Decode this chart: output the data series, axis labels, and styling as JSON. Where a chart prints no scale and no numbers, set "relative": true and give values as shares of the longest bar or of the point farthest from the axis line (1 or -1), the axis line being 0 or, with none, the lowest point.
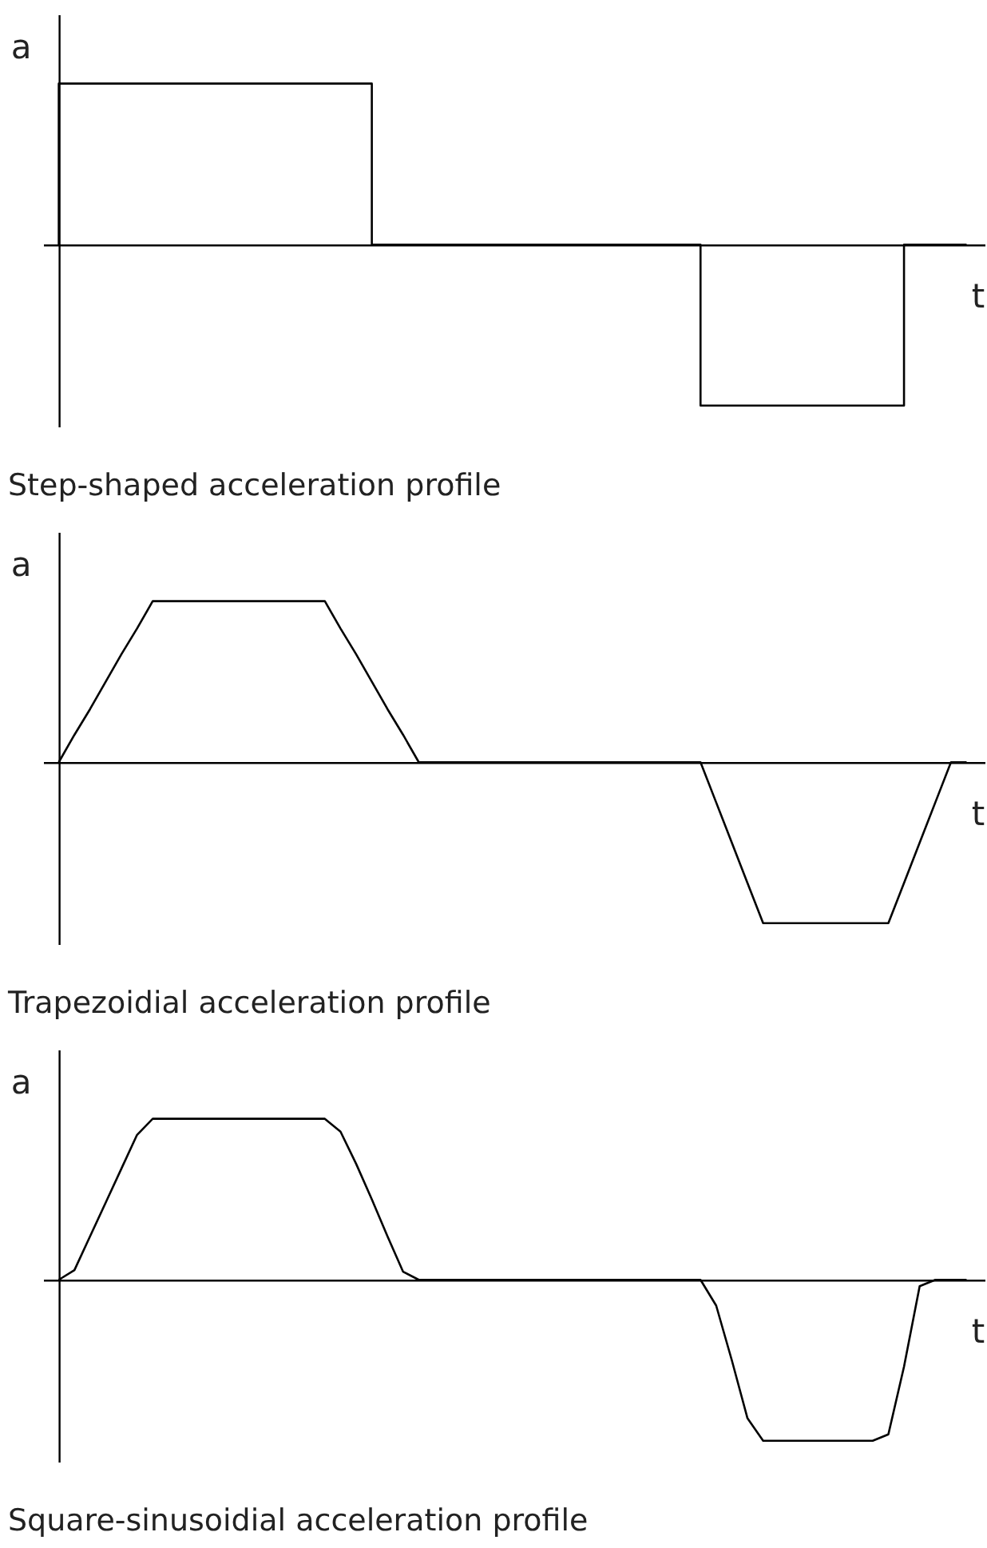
{
  "chart_data": [
    {
      "type": "step",
      "xlabel": "t",
      "ylabel": "a",
      "annotations": [
        "Step-shaped acceleration profile"
      ],
      "relative": true,
      "line_style": "solid",
      "categories": [
        null,
        null,
        null,
        null,
        null,
        null,
        null,
        null,
        null,
        null,
        null,
        null,
        null,
        null,
        null,
        null,
        null,
        null,
        null,
        null,
        null,
        null,
        null,
        null,
        null,
        null,
        null,
        null,
        null,
        null,
        null,
        null,
        null,
        null,
        null,
        null,
        null,
        null,
        null,
        null,
        null,
        null,
        null,
        null,
        null,
        null,
        null,
        null,
        null,
        null,
        null,
        null,
        null,
        null,
        null,
        null,
        null,
        null,
        null
      ],
      "series": [
        {
          "color": "#000000",
          "values": [
            0,
            1,
            1,
            1,
            1,
            1,
            1,
            1,
            1,
            1,
            1,
            1,
            1,
            1,
            1,
            1,
            1,
            1,
            1,
            1,
            1,
            0,
            0,
            0,
            0,
            0,
            0,
            0,
            0,
            0,
            0,
            0,
            0,
            0,
            0,
            0,
            0,
            0,
            0,
            0,
            0,
            0,
            -1,
            -1,
            -1,
            -1,
            -1,
            -1,
            -1,
            -1,
            -1,
            -1,
            -1,
            -1,
            -1,
            0,
            0,
            0,
            0
          ]
        }
      ]
    },
    {
      "type": "line",
      "xlabel": "t",
      "ylabel": "a",
      "annotations": [
        "Trapezoidial acceleration profile"
      ],
      "relative": true,
      "line_style": "solid",
      "categories": [
        null,
        null,
        null,
        null,
        null,
        null,
        null,
        null,
        null,
        null,
        null,
        null,
        null,
        null,
        null,
        null,
        null,
        null,
        null,
        null,
        null,
        null,
        null,
        null,
        null,
        null,
        null,
        null,
        null,
        null,
        null,
        null,
        null,
        null,
        null,
        null,
        null,
        null,
        null,
        null,
        null,
        null,
        null,
        null,
        null,
        null,
        null,
        null,
        null,
        null,
        null,
        null,
        null,
        null,
        null,
        null,
        null,
        null,
        null
      ],
      "series": [
        {
          "color": "#000000",
          "values": [
            0,
            0.17,
            0.33,
            0.5,
            0.67,
            0.83,
            1,
            1,
            1,
            1,
            1,
            1,
            1,
            1,
            1,
            1,
            1,
            1,
            0.83,
            0.67,
            0.5,
            0.33,
            0.17,
            0,
            0,
            0,
            0,
            0,
            0,
            0,
            0,
            0,
            0,
            0,
            0,
            0,
            0,
            0,
            0,
            0,
            0,
            0,
            -0.25,
            -0.5,
            -0.75,
            -1,
            -1,
            -1,
            -1,
            -1,
            -1,
            -1,
            -1,
            -1,
            -0.75,
            -0.5,
            -0.25,
            0,
            0
          ]
        }
      ]
    },
    {
      "type": "line",
      "xlabel": "t",
      "ylabel": "a",
      "annotations": [
        "Square-sinusoidial acceleration profile"
      ],
      "relative": true,
      "line_style": "solid",
      "categories": [
        null,
        null,
        null,
        null,
        null,
        null,
        null,
        null,
        null,
        null,
        null,
        null,
        null,
        null,
        null,
        null,
        null,
        null,
        null,
        null,
        null,
        null,
        null,
        null,
        null,
        null,
        null,
        null,
        null,
        null,
        null,
        null,
        null,
        null,
        null,
        null,
        null,
        null,
        null,
        null,
        null,
        null,
        null,
        null,
        null,
        null,
        null,
        null,
        null,
        null,
        null,
        null,
        null,
        null,
        null,
        null,
        null,
        null,
        null
      ],
      "series": [
        {
          "color": "#000000",
          "values": [
            0,
            0.06,
            0.27,
            0.48,
            0.69,
            0.9,
            1,
            1,
            1,
            1,
            1,
            1,
            1,
            1,
            1,
            1,
            1,
            1,
            0.92,
            0.72,
            0.5,
            0.27,
            0.05,
            0,
            0,
            0,
            0,
            0,
            0,
            0,
            0,
            0,
            0,
            0,
            0,
            0,
            0,
            0,
            0,
            0,
            0,
            0,
            -0.16,
            -0.5,
            -0.86,
            -1,
            -1,
            -1,
            -1,
            -1,
            -1,
            -1,
            -1,
            -0.96,
            -0.54,
            -0.04,
            0,
            0,
            0
          ]
        }
      ]
    }
  ]
}
